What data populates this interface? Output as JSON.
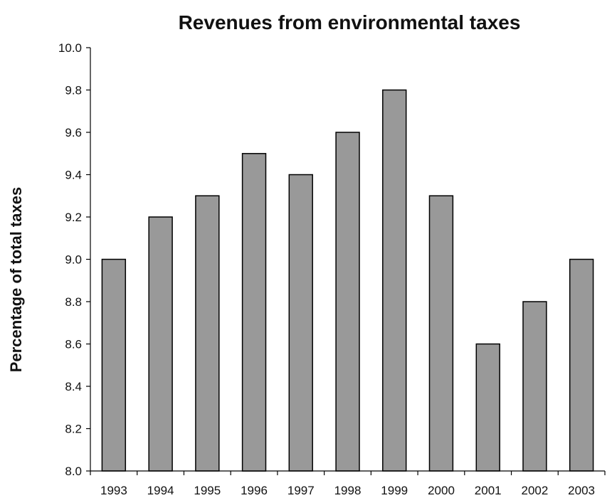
{
  "chart_data": {
    "type": "bar",
    "title": "Revenues from environmental taxes",
    "xlabel": "",
    "ylabel": "Percentage of total taxes",
    "categories": [
      "1993",
      "1994",
      "1995",
      "1996",
      "1997",
      "1998",
      "1999",
      "2000",
      "2001",
      "2002",
      "2003"
    ],
    "values": [
      9.0,
      9.2,
      9.3,
      9.5,
      9.4,
      9.6,
      9.8,
      9.3,
      8.6,
      8.8,
      9.0
    ],
    "ylim": [
      8.0,
      10.0
    ],
    "yticks": [
      "8.0",
      "8.2",
      "8.4",
      "8.6",
      "8.8",
      "9.0",
      "9.2",
      "9.4",
      "9.6",
      "9.8",
      "10.0"
    ],
    "grid": false,
    "legend": "none",
    "bar_color": "#999999"
  }
}
